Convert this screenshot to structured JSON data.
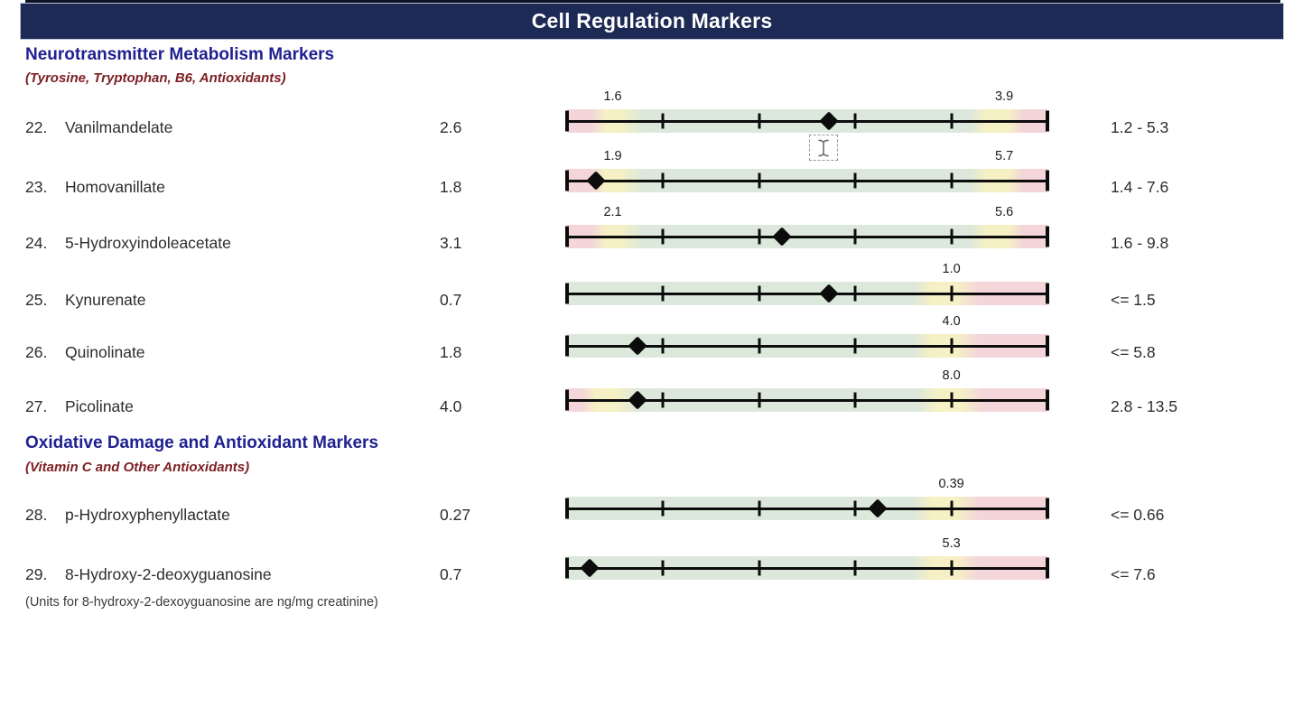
{
  "title": "Cell Regulation Markers",
  "sections": [
    {
      "heading": "Neurotransmitter Metabolism Markers",
      "subheading": "(Tyrosine, Tryptophan, B6, Antioxidants)",
      "rows": [
        {
          "num": "22.",
          "name": "Vanilmandelate",
          "value": "2.6",
          "range": "1.2 - 5.3",
          "scale": {
            "band": "range",
            "marker_pos": 54.5,
            "labels": [
              {
                "text": "1.6",
                "pos": 9.5
              },
              {
                "text": "3.9",
                "pos": 91
              }
            ]
          }
        },
        {
          "num": "23.",
          "name": "Homovanillate",
          "value": "1.8",
          "range": "1.4 - 7.6",
          "scale": {
            "band": "range",
            "marker_pos": 6.0,
            "labels": [
              {
                "text": "1.9",
                "pos": 9.5
              },
              {
                "text": "5.7",
                "pos": 91
              }
            ]
          }
        },
        {
          "num": "24.",
          "name": "5-Hydroxyindoleacetate",
          "value": "3.1",
          "range": "1.6 - 9.8",
          "scale": {
            "band": "range",
            "marker_pos": 44.7,
            "labels": [
              {
                "text": "2.1",
                "pos": 9.5
              },
              {
                "text": "5.6",
                "pos": 91
              }
            ]
          }
        },
        {
          "num": "25.",
          "name": "Kynurenate",
          "value": "0.7",
          "range": "<= 1.5",
          "scale": {
            "band": "upper",
            "marker_pos": 54.5,
            "labels": [
              {
                "text": "1.0",
                "pos": 80
              }
            ]
          }
        },
        {
          "num": "26.",
          "name": "Quinolinate",
          "value": "1.8",
          "range": "<= 5.8",
          "scale": {
            "band": "upper",
            "marker_pos": 14.6,
            "labels": [
              {
                "text": "4.0",
                "pos": 80
              }
            ]
          }
        },
        {
          "num": "27.",
          "name": "Picolinate",
          "value": "4.0",
          "range": "2.8 - 13.5",
          "scale": {
            "band": "range_wide",
            "marker_pos": 14.6,
            "labels": [
              {
                "text": "8.0",
                "pos": 80
              }
            ]
          }
        }
      ]
    },
    {
      "heading": "Oxidative Damage and Antioxidant Markers",
      "subheading": "(Vitamin C and Other Antioxidants)",
      "rows": [
        {
          "num": "28.",
          "name": "p-Hydroxyphenyllactate",
          "value": "0.27",
          "range": "<= 0.66",
          "scale": {
            "band": "upper",
            "marker_pos": 64.7,
            "labels": [
              {
                "text": "0.39",
                "pos": 80
              }
            ]
          }
        },
        {
          "num": "29.",
          "name": "8-Hydroxy-2-deoxyguanosine",
          "value": "0.7",
          "range": "<= 7.6",
          "scale": {
            "band": "upper",
            "marker_pos": 4.7,
            "labels": [
              {
                "text": "5.3",
                "pos": 80
              }
            ]
          }
        }
      ]
    }
  ],
  "footnote": "(Units for 8-hydroxy-2-dexoyguanosine are ng/mg creatinine)",
  "cursor_icon": "ibeam-text-cursor",
  "colors": {
    "banner_bg": "#1d2a55",
    "heading_blue": "#1f2191",
    "subheading_red": "#7d2125",
    "band_green": "#dce8db",
    "band_yellow": "#f6f0c5",
    "band_pink": "#f3d5da",
    "scale_ink": "#0c0c0c"
  }
}
